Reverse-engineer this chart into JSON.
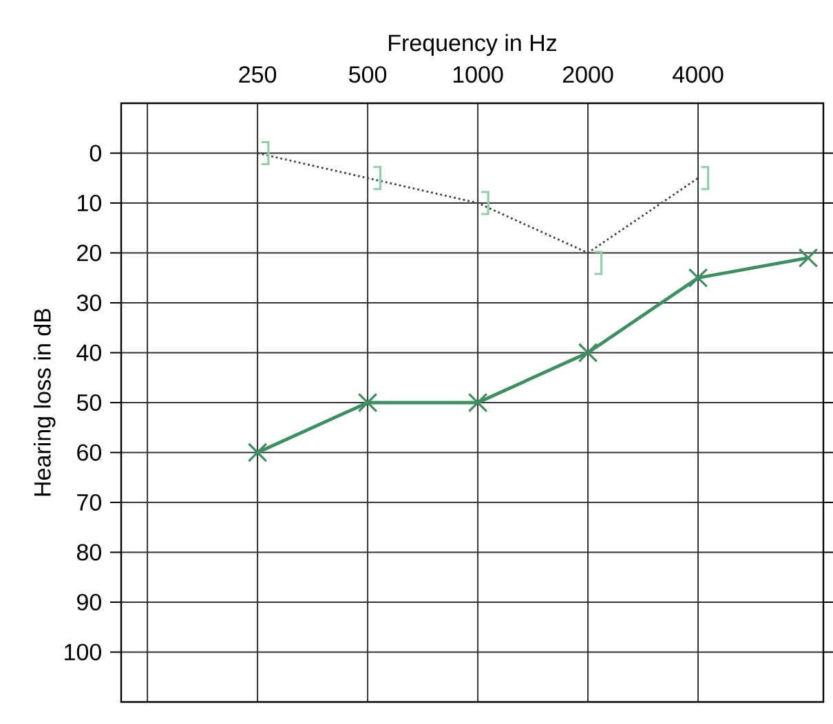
{
  "chart_data": {
    "type": "line",
    "xlabel": "Frequency in Hz",
    "ylabel": "Hearing loss in dB",
    "x": [
      250,
      500,
      1000,
      2000,
      4000,
      8000
    ],
    "series": [
      {
        "color": "#3d8f62",
        "values": [
          60,
          50,
          50,
          40,
          25,
          21
        ],
        "marker": "cross",
        "line_style": "solid"
      },
      {
        "color": "#404040",
        "values": [
          0,
          5,
          10,
          20,
          5,
          null
        ],
        "marker": "none",
        "line_style": "dotted"
      },
      {
        "type": "scatter",
        "color": "#8fd0a8",
        "x": [
          262,
          530,
          1045,
          2130,
          4170
        ],
        "values": [
          0,
          5,
          10,
          22,
          5
        ]
      }
    ],
    "log": "x",
    "xlim": [
      106,
      8800
    ],
    "xticks": [
      {
        "value": 125,
        "label": null
      },
      250,
      500,
      1000,
      2000,
      4000
    ],
    "ylim": [
      110,
      -10
    ],
    "yticks": [
      0,
      10,
      20,
      30,
      40,
      50,
      60,
      70,
      80,
      90,
      100
    ],
    "grid": true
  }
}
